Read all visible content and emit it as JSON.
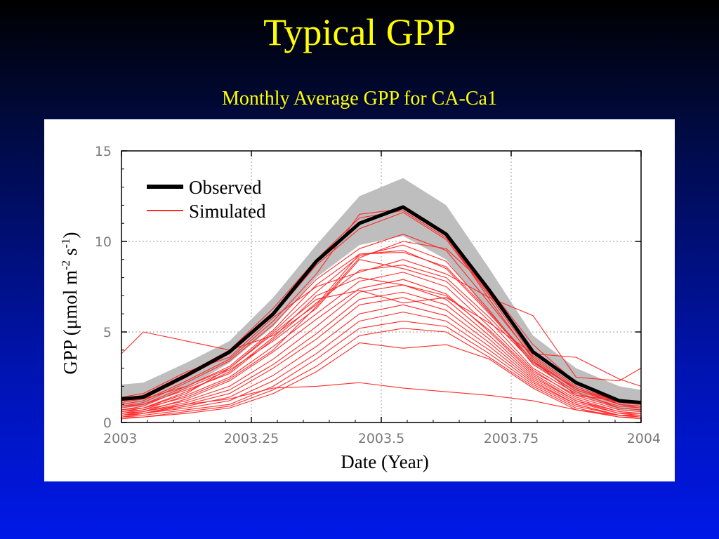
{
  "slide": {
    "title": "Typical GPP",
    "subtitle": "Monthly Average GPP for CA-Ca1"
  },
  "chart_data": {
    "type": "line",
    "xlabel": "Date (Year)",
    "ylabel_main": "GPP (",
    "ylabel_mu": "μ",
    "ylabel_mol": "mol m",
    "ylabel_exp1": "-2",
    "ylabel_s": " s",
    "ylabel_exp2": "-1",
    "ylabel_close": ")",
    "xlim": [
      2003,
      2004
    ],
    "ylim": [
      0,
      15
    ],
    "x_ticks": [
      2003,
      2003.25,
      2003.5,
      2003.75,
      2004
    ],
    "x_tick_labels": [
      "2003",
      "2003.25",
      "2003.5",
      "2003.75",
      "2004"
    ],
    "y_ticks": [
      0,
      5,
      10,
      15
    ],
    "y_tick_labels": [
      "0",
      "5",
      "10",
      "15"
    ],
    "grid": true,
    "legend_placement": "top-left",
    "legend": [
      "Observed",
      "Simulated"
    ],
    "colors": {
      "observed": "#000000",
      "simulated": "#ff2a2a",
      "band": "#bebebe"
    },
    "x": [
      2003.0,
      2003.042,
      2003.125,
      2003.208,
      2003.292,
      2003.375,
      2003.458,
      2003.542,
      2003.625,
      2003.708,
      2003.792,
      2003.875,
      2003.958,
      2004.0
    ],
    "observed": {
      "name": "Observed",
      "values": [
        1.3,
        1.4,
        2.6,
        3.9,
        6.0,
        8.9,
        11.0,
        11.9,
        10.4,
        7.3,
        3.9,
        2.2,
        1.2,
        1.1
      ]
    },
    "band": {
      "upper": [
        2.1,
        2.2,
        3.3,
        4.5,
        6.9,
        9.8,
        12.5,
        13.5,
        12.0,
        8.5,
        4.8,
        3.0,
        2.0,
        1.8
      ],
      "lower": [
        0.8,
        0.9,
        1.9,
        3.3,
        5.3,
        8.0,
        9.8,
        10.3,
        9.0,
        6.0,
        3.2,
        1.6,
        0.7,
        0.6
      ]
    },
    "simulated": [
      [
        1.2,
        1.3,
        2.5,
        3.8,
        5.9,
        8.7,
        10.7,
        11.6,
        10.1,
        7.0,
        3.7,
        2.0,
        1.1,
        1.0
      ],
      [
        1.0,
        1.2,
        2.3,
        3.5,
        5.6,
        8.2,
        11.5,
        11.8,
        10.3,
        6.8,
        3.5,
        1.8,
        1.0,
        0.9
      ],
      [
        0.9,
        1.1,
        2.2,
        3.4,
        5.4,
        7.9,
        9.6,
        10.4,
        9.5,
        6.6,
        3.6,
        1.9,
        1.1,
        1.0
      ],
      [
        0.6,
        0.8,
        1.6,
        3.0,
        5.0,
        7.2,
        9.2,
        9.8,
        8.9,
        6.2,
        3.2,
        1.7,
        0.8,
        0.7
      ],
      [
        3.8,
        5.0,
        4.5,
        4.0,
        4.8,
        6.5,
        9.3,
        9.5,
        8.5,
        6.0,
        3.4,
        1.5,
        1.2,
        1.1
      ],
      [
        1.4,
        1.6,
        2.8,
        3.6,
        5.8,
        7.5,
        8.3,
        9.0,
        8.2,
        6.9,
        5.9,
        2.5,
        2.3,
        3.0
      ],
      [
        0.7,
        0.9,
        1.9,
        2.9,
        4.5,
        6.3,
        9.0,
        8.5,
        7.8,
        5.6,
        3.0,
        1.6,
        0.9,
        0.8
      ],
      [
        0.5,
        0.7,
        1.5,
        2.5,
        4.2,
        6.0,
        7.8,
        8.3,
        7.5,
        5.3,
        2.9,
        1.4,
        0.7,
        0.6
      ],
      [
        0.4,
        0.6,
        1.3,
        2.3,
        3.9,
        5.7,
        7.4,
        7.9,
        7.1,
        5.0,
        2.7,
        1.3,
        0.6,
        0.5
      ],
      [
        0.6,
        0.7,
        1.2,
        2.0,
        3.5,
        5.3,
        7.2,
        7.6,
        6.8,
        4.8,
        2.6,
        1.2,
        0.6,
        0.5
      ],
      [
        0.5,
        0.6,
        1.1,
        1.8,
        3.2,
        4.9,
        6.8,
        7.2,
        6.5,
        4.6,
        2.5,
        1.2,
        0.5,
        0.5
      ],
      [
        0.4,
        0.5,
        1.0,
        1.6,
        3.0,
        4.6,
        6.5,
        6.9,
        6.2,
        4.4,
        2.4,
        1.1,
        0.5,
        0.4
      ],
      [
        0.3,
        0.5,
        0.9,
        1.4,
        2.6,
        4.2,
        6.0,
        6.5,
        5.9,
        4.2,
        2.3,
        1.0,
        0.4,
        0.4
      ],
      [
        0.4,
        0.5,
        0.8,
        1.2,
        2.3,
        3.8,
        5.6,
        6.1,
        5.6,
        4.0,
        2.2,
        1.0,
        0.4,
        0.3
      ],
      [
        0.3,
        0.4,
        0.7,
        1.0,
        2.0,
        3.5,
        5.2,
        5.6,
        5.3,
        3.8,
        2.1,
        0.9,
        0.4,
        0.3
      ],
      [
        0.2,
        0.3,
        0.6,
        0.9,
        1.8,
        3.1,
        4.8,
        5.2,
        5.0,
        3.6,
        2.0,
        0.8,
        0.3,
        0.3
      ],
      [
        0.3,
        0.3,
        0.5,
        0.8,
        1.6,
        2.8,
        4.4,
        4.1,
        4.3,
        3.5,
        1.9,
        0.7,
        0.3,
        0.2
      ],
      [
        0.5,
        0.6,
        1.0,
        1.3,
        1.9,
        2.0,
        2.2,
        1.9,
        1.7,
        1.5,
        1.2,
        0.7,
        0.4,
        0.4
      ],
      [
        1.1,
        1.3,
        2.0,
        3.0,
        4.9,
        6.8,
        7.3,
        6.6,
        6.9,
        5.5,
        3.8,
        3.6,
        2.4,
        2.0
      ],
      [
        0.9,
        1.0,
        1.8,
        2.7,
        4.6,
        6.6,
        8.4,
        8.7,
        8.0,
        5.8,
        3.3,
        1.9,
        1.0,
        0.9
      ],
      [
        0.7,
        0.8,
        1.4,
        2.4,
        4.0,
        6.4,
        9.1,
        10.0,
        9.6,
        7.4,
        4.3,
        2.2,
        1.0,
        0.9
      ],
      [
        1.3,
        1.5,
        2.7,
        4.0,
        6.3,
        9.0,
        11.3,
        11.7,
        10.2,
        7.1,
        3.9,
        2.1,
        1.2,
        1.1
      ],
      [
        0.6,
        0.8,
        1.7,
        2.8,
        4.7,
        7.0,
        8.0,
        7.6,
        7.0,
        5.1,
        2.8,
        1.5,
        0.8,
        0.7
      ],
      [
        0.8,
        1.0,
        2.0,
        3.1,
        5.1,
        7.6,
        9.3,
        9.4,
        8.6,
        6.1,
        3.4,
        1.8,
        1.0,
        0.8
      ]
    ]
  }
}
